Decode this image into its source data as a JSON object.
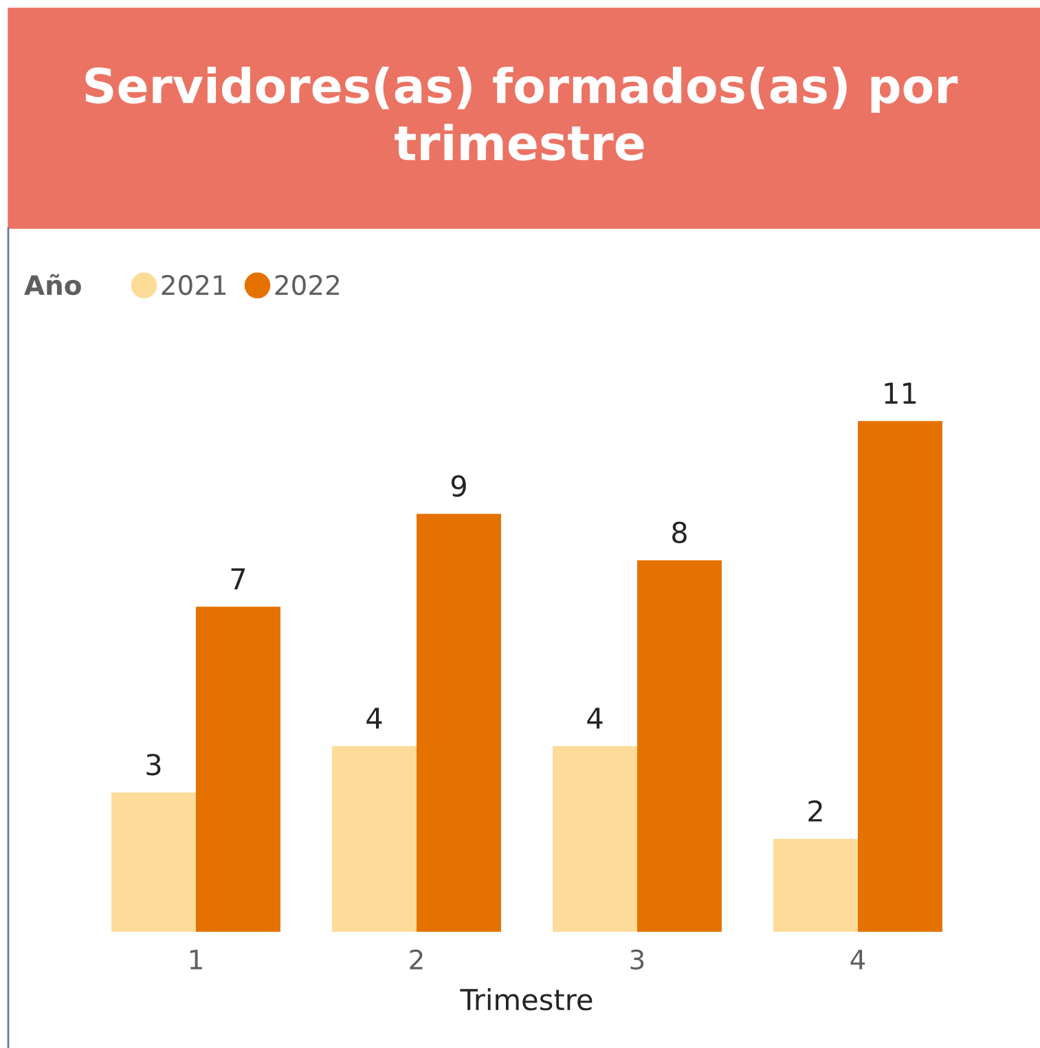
{
  "chart_data": {
    "type": "bar",
    "title": "Servidores(as) formados(as) por trimestre",
    "xlabel": "Trimestre",
    "legend_title": "Año",
    "categories": [
      "1",
      "2",
      "3",
      "4"
    ],
    "series": [
      {
        "name": "2021",
        "color": "#fddc9a",
        "values": [
          3,
          4,
          4,
          2
        ]
      },
      {
        "name": "2022",
        "color": "#e57200",
        "values": [
          7,
          9,
          8,
          11
        ]
      }
    ],
    "data_labels": true,
    "legend": "top left"
  }
}
